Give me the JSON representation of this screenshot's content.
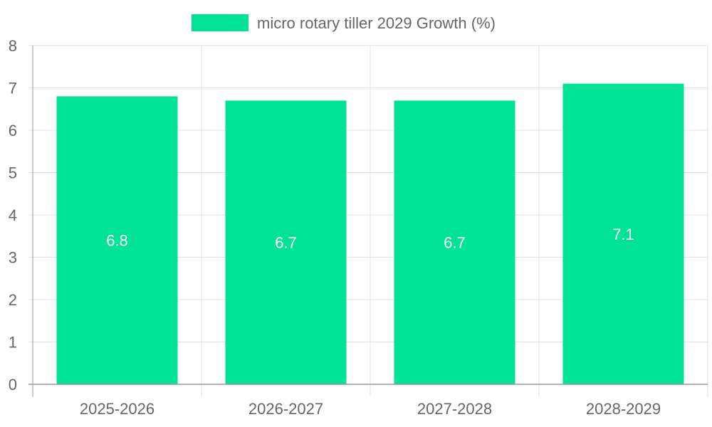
{
  "chart_data": {
    "type": "bar",
    "categories": [
      "2025-2026",
      "2026-2027",
      "2027-2028",
      "2028-2029"
    ],
    "series": [
      {
        "name": "micro rotary tiller 2029 Growth (%)",
        "values": [
          6.8,
          6.7,
          6.7,
          7.1
        ],
        "color": "#00e396"
      }
    ],
    "data_labels": [
      "6.8",
      "6.7",
      "6.7",
      "7.1"
    ],
    "y_ticks": [
      "0",
      "1",
      "2",
      "3",
      "4",
      "5",
      "6",
      "7",
      "8"
    ],
    "ylim": [
      0,
      8
    ],
    "legend_position": "top-center",
    "grid": true,
    "colors": {
      "bar": "#00e396",
      "grid": "#e0e0e0",
      "axis": "#999999",
      "text": "#666666",
      "label": "#ffffff"
    }
  }
}
